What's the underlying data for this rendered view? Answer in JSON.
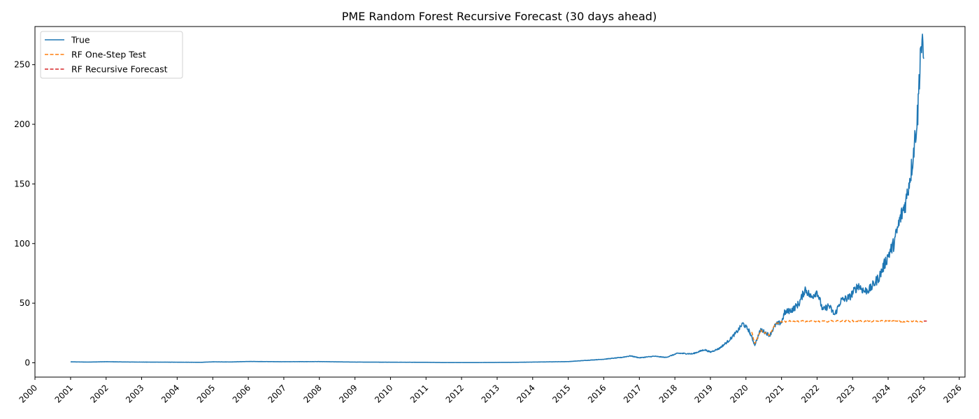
{
  "chart_data": {
    "type": "line",
    "title": "PME Random Forest Recursive Forecast (30 days ahead)",
    "xlabel": "",
    "ylabel": "",
    "x_axis": {
      "type": "date",
      "min": "2000-01-01",
      "max": "2026-03-01",
      "tick_labels": [
        "2000",
        "2001",
        "2002",
        "2003",
        "2004",
        "2005",
        "2006",
        "2007",
        "2008",
        "2009",
        "2010",
        "2011",
        "2012",
        "2013",
        "2014",
        "2015",
        "2016",
        "2017",
        "2018",
        "2019",
        "2020",
        "2021",
        "2022",
        "2023",
        "2024",
        "2025",
        "2026"
      ]
    },
    "y_axis": {
      "min": -12,
      "max": 282,
      "ticks": [
        0,
        50,
        100,
        150,
        200,
        250
      ]
    },
    "grid": false,
    "legend": {
      "position": "top-left",
      "entries": [
        "True",
        "RF One-Step Test",
        "RF Recursive Forecast"
      ]
    },
    "series": [
      {
        "name": "True",
        "color": "#1f77b4",
        "style": "solid",
        "points": [
          [
            "2001-01-01",
            0.8
          ],
          [
            "2001-07-01",
            0.6
          ],
          [
            "2002-01-01",
            0.9
          ],
          [
            "2002-07-01",
            0.7
          ],
          [
            "2003-01-01",
            0.6
          ],
          [
            "2004-01-01",
            0.5
          ],
          [
            "2004-09-01",
            0.4
          ],
          [
            "2005-01-01",
            0.8
          ],
          [
            "2005-07-01",
            0.7
          ],
          [
            "2006-01-01",
            1.1
          ],
          [
            "2007-01-01",
            0.9
          ],
          [
            "2008-01-01",
            1.0
          ],
          [
            "2009-01-01",
            0.6
          ],
          [
            "2010-01-01",
            0.5
          ],
          [
            "2011-01-01",
            0.4
          ],
          [
            "2011-07-01",
            0.2
          ],
          [
            "2012-07-01",
            0.2
          ],
          [
            "2013-07-01",
            0.4
          ],
          [
            "2014-07-01",
            0.8
          ],
          [
            "2015-01-01",
            1.0
          ],
          [
            "2015-07-01",
            2.0
          ],
          [
            "2016-01-01",
            3.0
          ],
          [
            "2016-07-01",
            4.5
          ],
          [
            "2016-10-01",
            5.8
          ],
          [
            "2017-01-01",
            4.2
          ],
          [
            "2017-06-01",
            5.5
          ],
          [
            "2017-10-01",
            4.5
          ],
          [
            "2018-02-01",
            8.0
          ],
          [
            "2018-07-01",
            7.5
          ],
          [
            "2018-11-01",
            11.0
          ],
          [
            "2019-01-01",
            9.0
          ],
          [
            "2019-04-01",
            12.0
          ],
          [
            "2019-07-01",
            18.0
          ],
          [
            "2019-10-01",
            26.0
          ],
          [
            "2019-12-01",
            33.0
          ],
          [
            "2020-02-01",
            27.0
          ],
          [
            "2020-04-01",
            15.0
          ],
          [
            "2020-06-01",
            28.0
          ],
          [
            "2020-09-01",
            23.0
          ],
          [
            "2020-11-01",
            32.0
          ],
          [
            "2021-01-01",
            34.0
          ],
          [
            "2021-02-01",
            42.0
          ],
          [
            "2021-05-01",
            45.0
          ],
          [
            "2021-07-01",
            50.0
          ],
          [
            "2021-09-01",
            62.0
          ],
          [
            "2021-11-01",
            55.0
          ],
          [
            "2022-01-01",
            60.0
          ],
          [
            "2022-03-01",
            44.0
          ],
          [
            "2022-05-01",
            48.0
          ],
          [
            "2022-07-01",
            40.0
          ],
          [
            "2022-09-01",
            52.0
          ],
          [
            "2022-12-01",
            55.0
          ],
          [
            "2023-03-01",
            65.0
          ],
          [
            "2023-05-01",
            60.0
          ],
          [
            "2023-07-01",
            62.0
          ],
          [
            "2023-10-01",
            72.0
          ],
          [
            "2024-01-01",
            90.0
          ],
          [
            "2024-03-01",
            100.0
          ],
          [
            "2024-05-01",
            120.0
          ],
          [
            "2024-07-01",
            135.0
          ],
          [
            "2024-09-01",
            165.0
          ],
          [
            "2024-11-01",
            210.0
          ],
          [
            "2024-12-01",
            268.0
          ],
          [
            "2025-01-01",
            255.0
          ]
        ]
      },
      {
        "name": "RF One-Step Test",
        "color": "#ff7f0e",
        "style": "dashed",
        "points": [
          [
            "2020-03-01",
            26.0
          ],
          [
            "2020-04-01",
            16.0
          ],
          [
            "2020-06-01",
            27.0
          ],
          [
            "2020-09-01",
            23.0
          ],
          [
            "2020-11-01",
            33.0
          ],
          [
            "2021-01-01",
            34.5
          ],
          [
            "2021-06-01",
            35.0
          ],
          [
            "2022-01-01",
            34.5
          ],
          [
            "2022-06-01",
            35.0
          ],
          [
            "2023-01-01",
            35.0
          ],
          [
            "2023-06-01",
            34.8
          ],
          [
            "2024-01-01",
            35.0
          ],
          [
            "2024-06-01",
            34.5
          ],
          [
            "2025-01-01",
            34.8
          ]
        ]
      },
      {
        "name": "RF Recursive Forecast",
        "color": "#d62728",
        "style": "dashed",
        "points": [
          [
            "2025-01-01",
            35.0
          ],
          [
            "2025-02-01",
            35.0
          ]
        ]
      }
    ]
  }
}
